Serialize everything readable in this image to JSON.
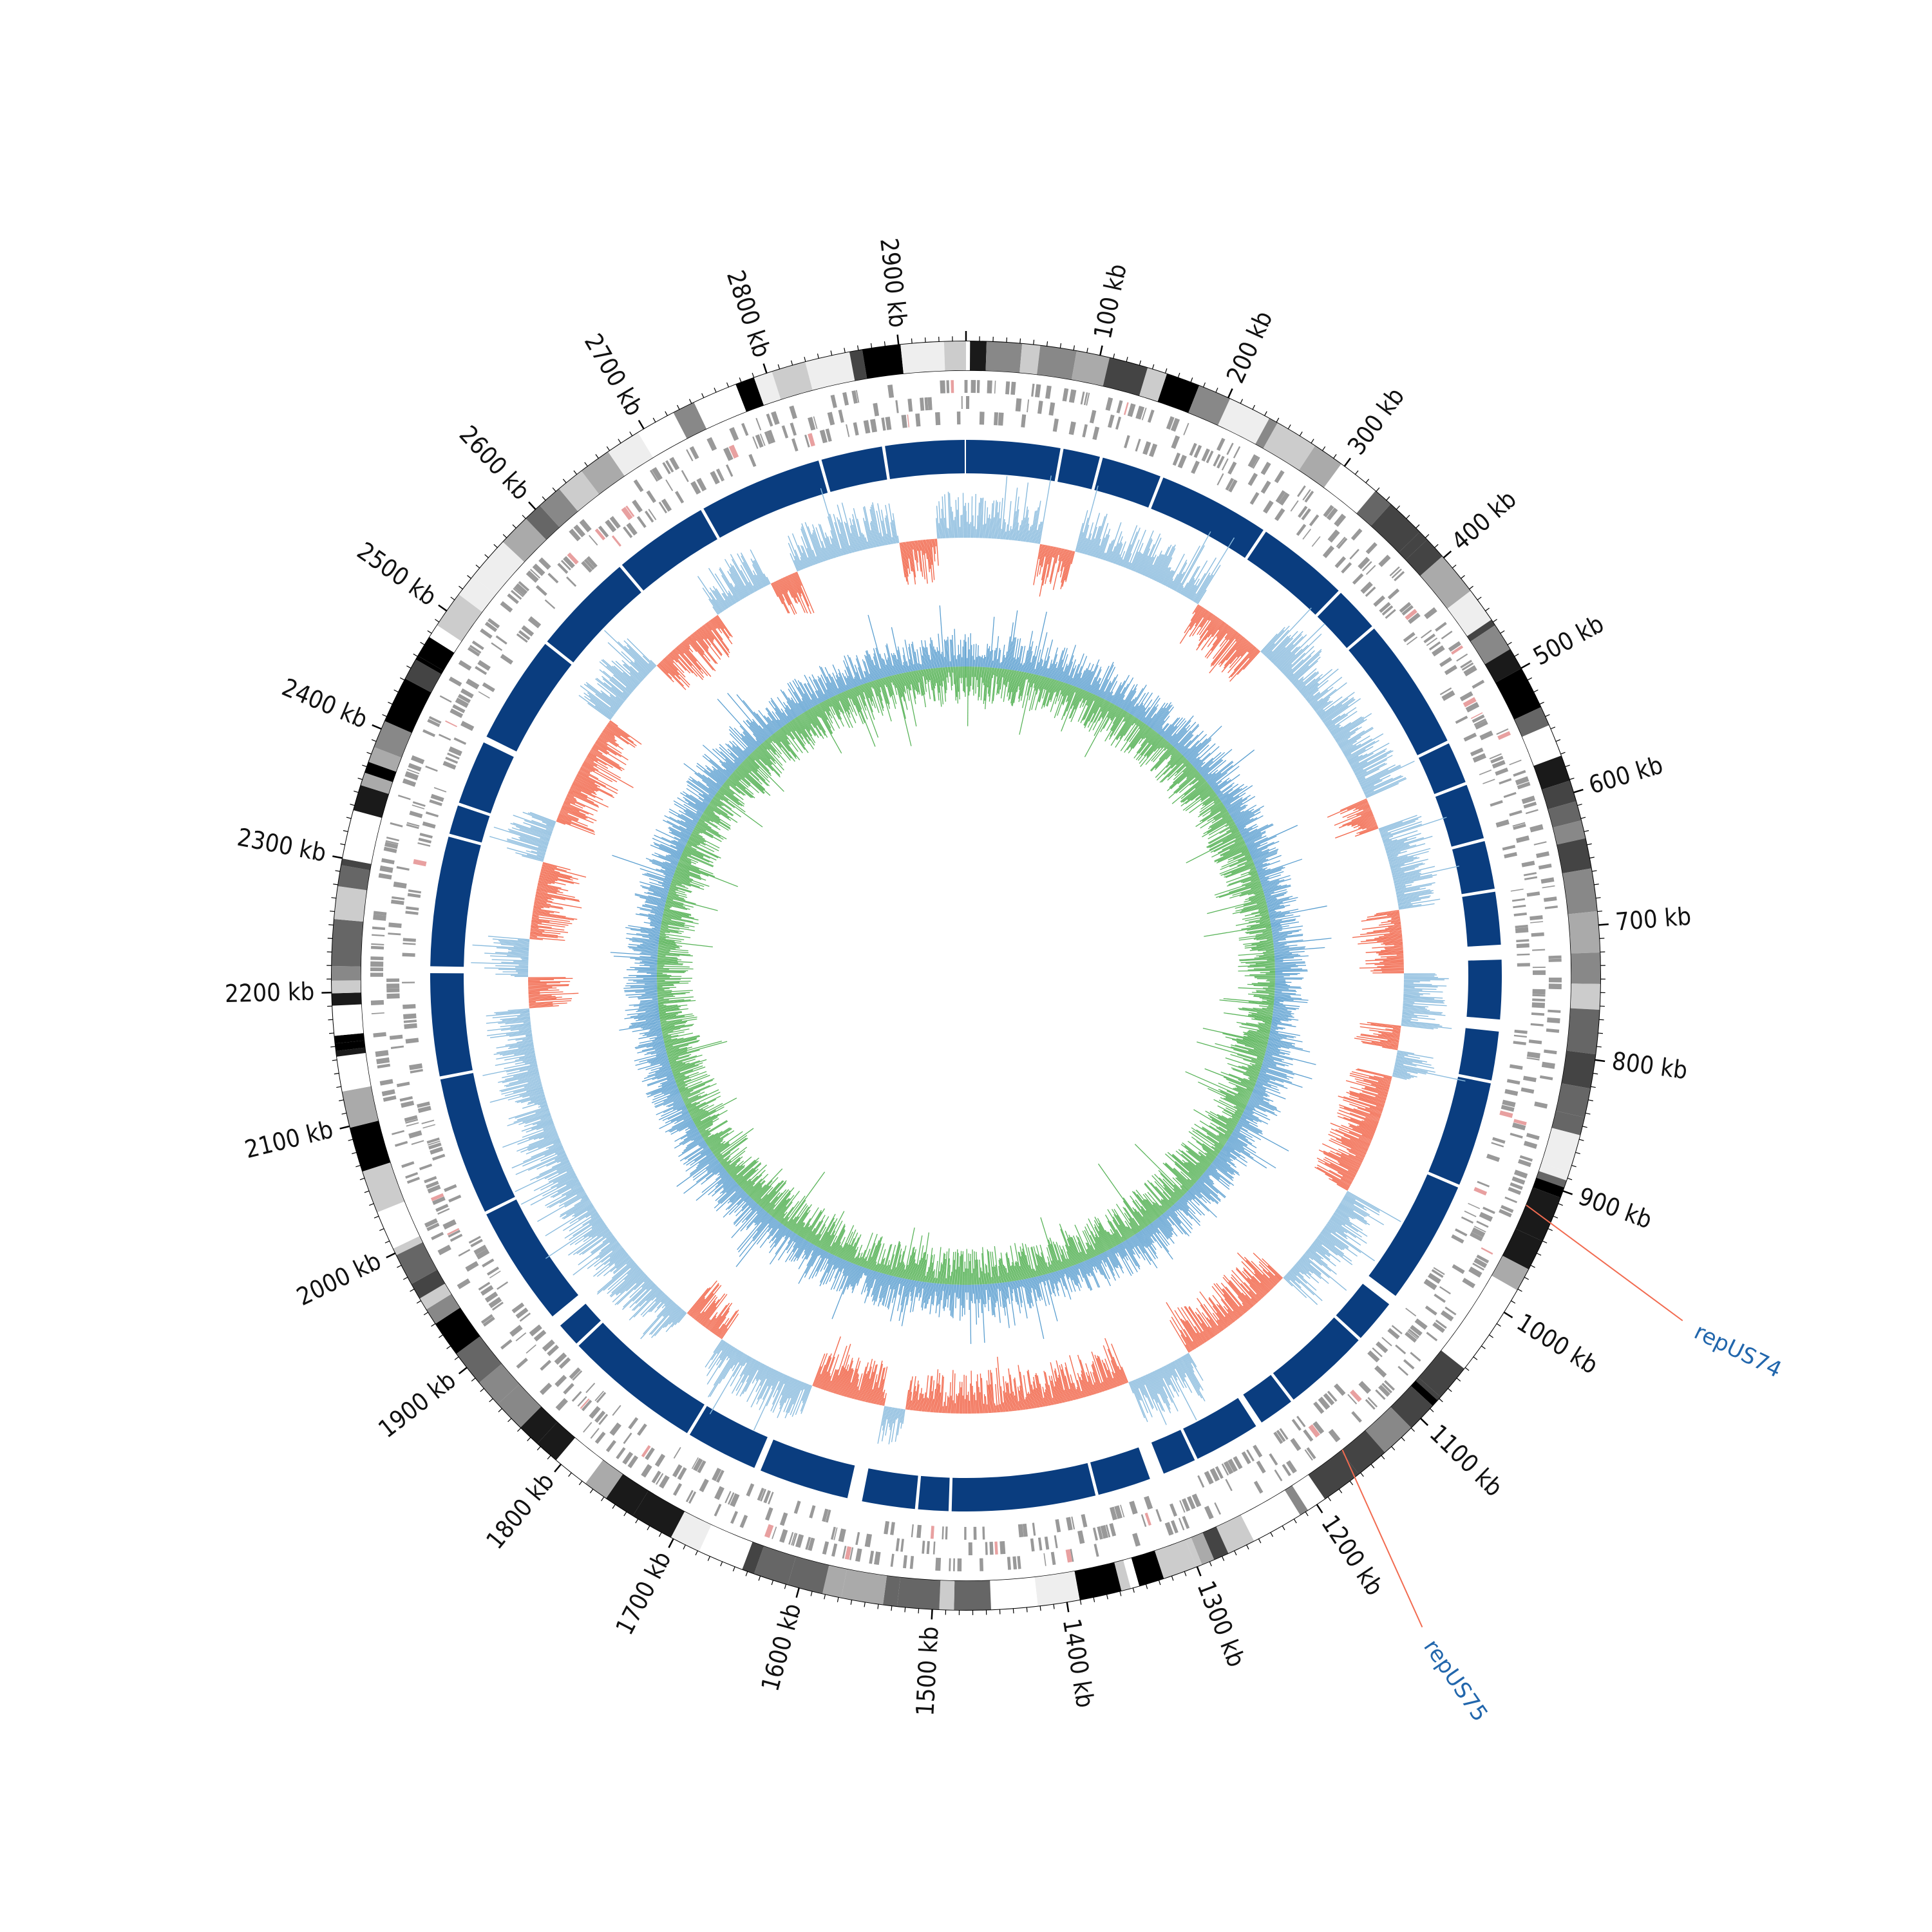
{
  "genome": {
    "length_kb": 2950,
    "tick_labels": [
      "100 kb",
      "200 kb",
      "300 kb",
      "400 kb",
      "500 kb",
      "600 kb",
      "700 kb",
      "800 kb",
      "900 kb",
      "1000 kb",
      "1100 kb",
      "1200 kb",
      "1300 kb",
      "1400 kb",
      "1500 kb",
      "1600 kb",
      "1700 kb",
      "1800 kb",
      "1900 kb",
      "2000 kb",
      "2100 kb",
      "2200 kb",
      "2300 kb",
      "2400 kb",
      "2500 kb",
      "2600 kb",
      "2700 kb",
      "2800 kb",
      "2900 kb"
    ],
    "tick_positions_kb": [
      100,
      200,
      300,
      400,
      500,
      600,
      700,
      800,
      900,
      1000,
      1100,
      1200,
      1300,
      1400,
      1500,
      1600,
      1700,
      1800,
      1900,
      2000,
      2100,
      2200,
      2300,
      2400,
      2500,
      2600,
      2700,
      2800,
      2900
    ]
  },
  "features": [
    {
      "label": "repUS74",
      "position_kb": 920
    },
    {
      "label": "repUS75",
      "position_kb": 1160
    }
  ],
  "colors": {
    "outer_ring_dark": "#000000",
    "outer_ring_mid": "#666666",
    "outer_ring_light": "#bbbbbb",
    "gene_track": "#999999",
    "gene_highlight": "#e8a0a0",
    "block_track": "#0a3d7f",
    "gc_positive": "#f26b50",
    "gc_negative": "#8bbcde",
    "skew_positive": "#5ab45a",
    "skew_negative": "#5b9fd0",
    "feature_label": "#2166ac",
    "feature_line": "#f26b50"
  }
}
